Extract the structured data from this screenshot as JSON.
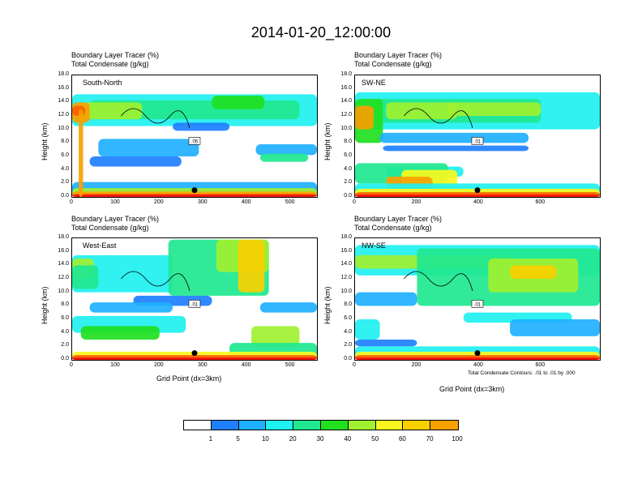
{
  "figure": {
    "title": "2014-01-20_12:00:00"
  },
  "panel_titles": {
    "tracer": "Boundary Layer Tracer   (%)",
    "condensate": "Total Condensate   (g/kg)"
  },
  "axes": {
    "ylabel": "Height (km)",
    "xlabel": "Grid Point (dx=3km)",
    "yticks": [
      "0.0",
      "2.0",
      "4.0",
      "6.0",
      "8.0",
      "10.0",
      "12.0",
      "14.0",
      "16.0",
      "18.0"
    ]
  },
  "contour_note": "Total Condensate Contours: .01 to .01 by .000",
  "colorbar": {
    "labels": [
      "1",
      "5",
      "10",
      "20",
      "30",
      "40",
      "50",
      "60",
      "70",
      "100"
    ],
    "colors": [
      "#ffffff",
      "#1e7fff",
      "#1fb0ff",
      "#1ff0f0",
      "#20e890",
      "#20e020",
      "#a0f030",
      "#f8f820",
      "#f8d000",
      "#f8a000",
      "#f86000",
      "#f81010"
    ]
  },
  "chart_data": [
    {
      "type": "heatmap",
      "panel": "South-North",
      "label": "South-North",
      "xticks": [
        "0",
        "100",
        "200",
        "300",
        "400",
        "500"
      ],
      "xlim": [
        0,
        560
      ],
      "ylim": [
        0,
        18
      ],
      "contour_label": ".05"
    },
    {
      "type": "heatmap",
      "panel": "SW-NE",
      "label": "SW-NE",
      "xticks": [
        "0",
        "200",
        "400",
        "600"
      ],
      "xlim": [
        0,
        790
      ],
      "ylim": [
        0,
        18
      ],
      "contour_label": ".01"
    },
    {
      "type": "heatmap",
      "panel": "West-East",
      "label": "West-East",
      "xticks": [
        "0",
        "100",
        "200",
        "300",
        "400",
        "500"
      ],
      "xlim": [
        0,
        560
      ],
      "ylim": [
        0,
        18
      ],
      "contour_label": ".01"
    },
    {
      "type": "heatmap",
      "panel": "NW-SE",
      "label": "NW-SE",
      "xticks": [
        "0",
        "200",
        "400",
        "600"
      ],
      "xlim": [
        0,
        790
      ],
      "ylim": [
        0,
        18
      ],
      "contour_label": ".01"
    }
  ]
}
